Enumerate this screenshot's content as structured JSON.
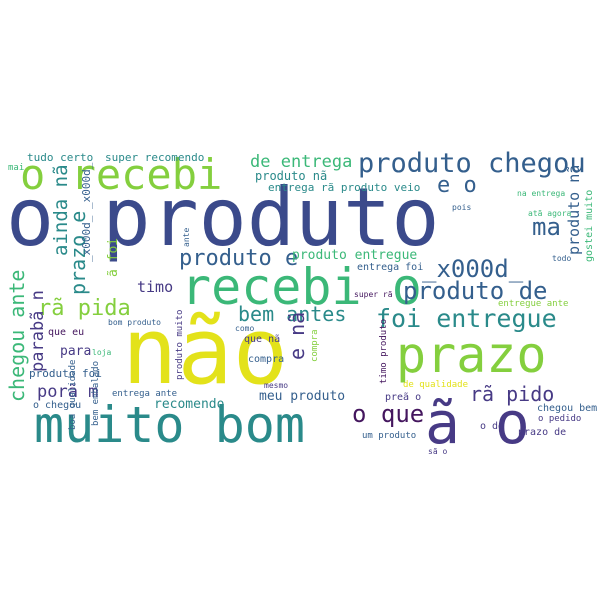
{
  "colors": {
    "navy": "#3b4a8b",
    "blue": "#345f8d",
    "teal": "#2a8a8a",
    "green": "#3bb878",
    "lime": "#84cf3e",
    "yellow": "#e3e21a",
    "purple": "#44165e",
    "indigo": "#473a85",
    "sea": "#28a47d"
  },
  "words": [
    "o produto",
    "não",
    "muito bom",
    "ã o",
    "prazo",
    "recebi o",
    "o recebi",
    "produto chegou",
    "foi entregue",
    "produto de",
    "_x000d_",
    "ainda nã",
    "chegou ante",
    "produto e",
    "rã pida",
    "bem antes",
    "parabã n",
    "e o",
    "de entrega",
    "prazo e",
    "ma",
    "timo",
    "porã m",
    "rã pido",
    "o que",
    "e nã",
    "produto entregue",
    "produto nã",
    "entrega rã produto veio",
    "entrega foi",
    "super recomendo",
    "tudo certo",
    "mai",
    "para",
    "que eu",
    "produto foi",
    "o chegou",
    "recomendo",
    "meu produto",
    "um produto",
    "o de",
    "prazo de",
    "chegou bem",
    "o pedido",
    "entregue ante",
    "na entrega",
    "atã agora",
    "gostei muito",
    "produto nã",
    "todo",
    "pois",
    "ante",
    "_x000d_ _x000d_",
    "ã foi",
    "super rã",
    "bom produto",
    "como",
    "compra",
    "que nã",
    "mesmo",
    "loja",
    "comprei",
    "sã o",
    "preã o",
    "de qualidade",
    "entrega ante",
    "boa qualidade",
    "bem embalado",
    "produto muito",
    "timo produto",
    "o que",
    "s"
  ]
}
